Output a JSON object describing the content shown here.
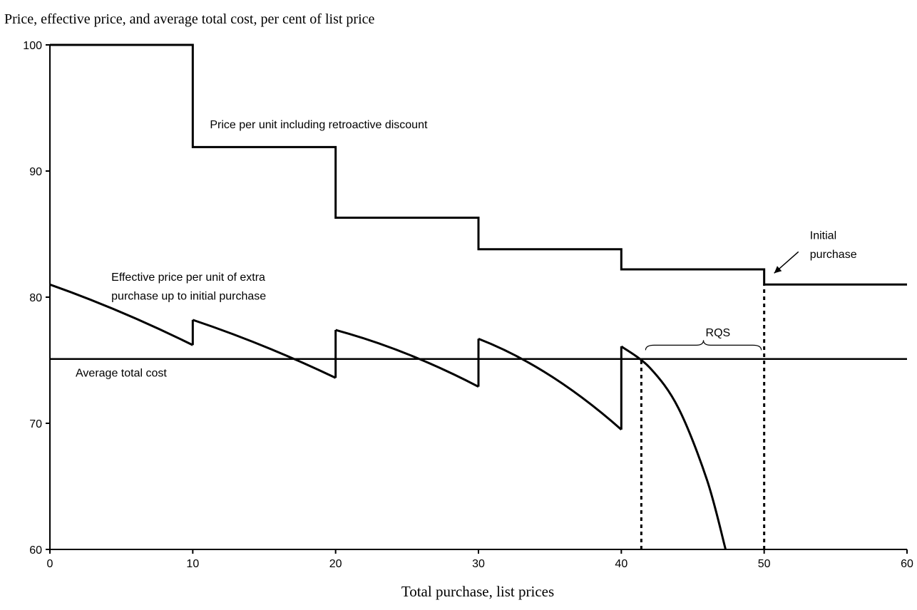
{
  "chart_data": {
    "type": "line",
    "ylabel": "Price, effective price, and average total cost, per cent of list price",
    "xlabel": "Total purchase, list prices",
    "xlim": [
      0,
      60
    ],
    "ylim": [
      60,
      100
    ],
    "x_ticks": [
      0,
      10,
      20,
      30,
      40,
      50,
      60
    ],
    "y_ticks": [
      60,
      70,
      80,
      90,
      100
    ],
    "grid": false,
    "legend": "none",
    "series": [
      {
        "kind": "step",
        "points": [
          [
            0,
            100
          ],
          [
            10,
            100
          ],
          [
            10,
            91.9
          ],
          [
            20,
            91.9
          ],
          [
            20,
            86.3
          ],
          [
            30,
            86.3
          ],
          [
            30,
            83.8
          ],
          [
            40,
            83.8
          ],
          [
            40,
            82.2
          ],
          [
            50,
            82.2
          ],
          [
            50,
            81
          ],
          [
            60,
            81
          ]
        ]
      },
      {
        "kind": "curve",
        "segments": [
          [
            [
              0,
              81
            ],
            [
              5,
              78.8
            ],
            [
              10,
              76.2
            ]
          ],
          [
            [
              10,
              78.2
            ],
            [
              15,
              76.1
            ],
            [
              20,
              73.6
            ]
          ],
          [
            [
              20,
              77.4
            ],
            [
              25,
              75.5
            ],
            [
              30,
              72.9
            ]
          ],
          [
            [
              30,
              76.7
            ],
            [
              35,
              73.8
            ],
            [
              40,
              69.5
            ]
          ],
          [
            [
              40,
              76.1
            ],
            [
              42,
              74.4
            ],
            [
              44,
              71.2
            ],
            [
              46,
              65.5
            ],
            [
              47.3,
              60
            ]
          ]
        ],
        "drops": [
          [
            10,
            76.2,
            78.2
          ],
          [
            20,
            73.6,
            77.4
          ],
          [
            30,
            72.9,
            76.7
          ],
          [
            40,
            69.5,
            76.1
          ]
        ]
      },
      {
        "kind": "hline",
        "y": 75.1
      }
    ],
    "reference_lines": [
      {
        "x": 41.4,
        "y_from": 60,
        "y_to": 75.1
      },
      {
        "x": 50,
        "y_from": 60,
        "y_to": 81
      }
    ],
    "annotations": [
      {
        "text": "Price per unit including retroactive discount",
        "x": 11.2,
        "y": 93.4
      },
      {
        "text": "Effective price per unit of extra",
        "x": 4.3,
        "y": 81.3
      },
      {
        "text": "purchase up to initial purchase",
        "x": 4.3,
        "y": 79.8
      },
      {
        "text": "Average total cost",
        "x": 1.8,
        "y": 73.7
      },
      {
        "text": "RQS",
        "x": 45.9,
        "y": 76.9
      },
      {
        "text": "Initial",
        "x": 53.2,
        "y": 84.6
      },
      {
        "text": "purchase",
        "x": 53.2,
        "y": 83.1
      }
    ],
    "arrow": {
      "from": [
        52.4,
        83.6
      ],
      "to": [
        50.7,
        81.9
      ]
    },
    "brace": {
      "x_from": 41.7,
      "x_to": 49.8,
      "y": 75.8
    }
  }
}
